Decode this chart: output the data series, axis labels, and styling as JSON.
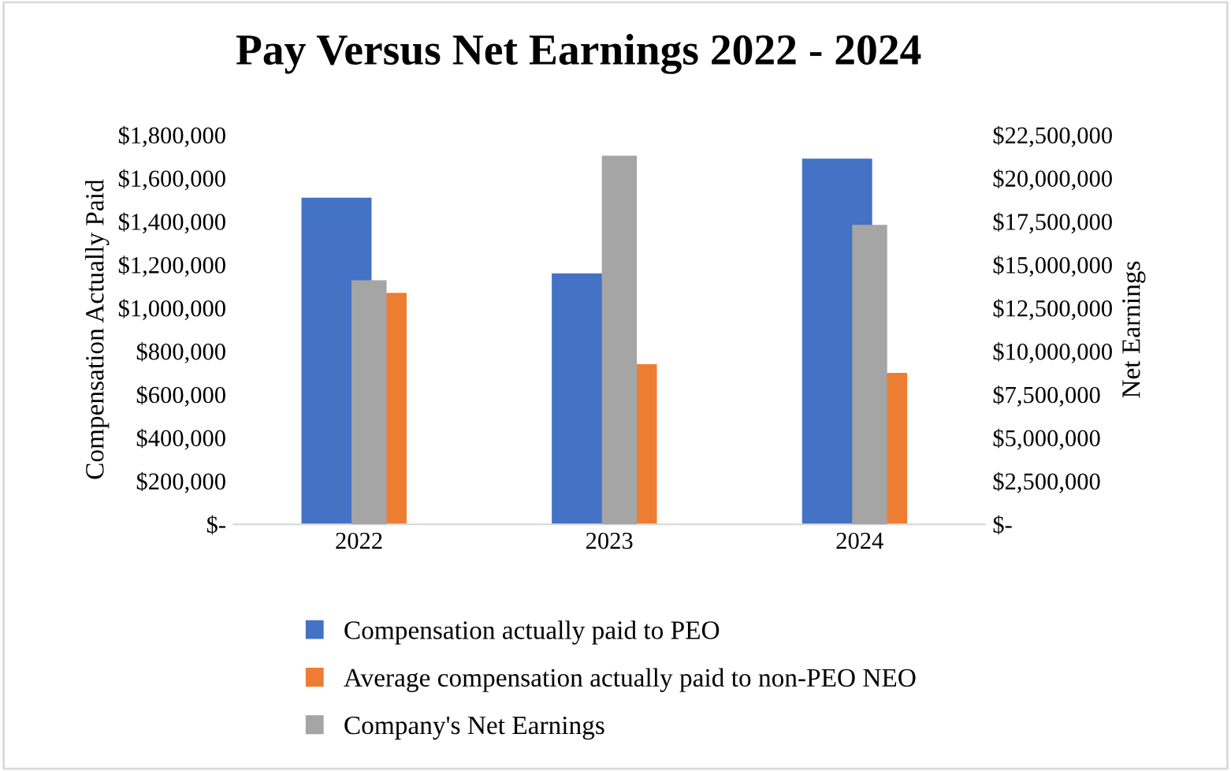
{
  "chart_data": {
    "type": "bar",
    "title": "Pay Versus Net Earnings 2022 - 2024",
    "ylabel": "Compensation Actually Paid",
    "y2label": "Net Earnings",
    "categories": [
      "2022",
      "2023",
      "2024"
    ],
    "series": [
      {
        "name": "Compensation actually paid to PEO",
        "color": "#4472c4",
        "values": [
          1510000,
          1160000,
          1690000
        ]
      },
      {
        "name": "Average compensation actually paid to non-PEO NEO",
        "color": "#ed7d31",
        "values": [
          1070000,
          740000,
          700000
        ]
      },
      {
        "name": "Company's Net Earnings",
        "color": "#a5a5a5",
        "values": [
          14100000,
          21300000,
          17300000
        ],
        "axis": "y2"
      }
    ],
    "ylim": [
      0,
      1800000
    ],
    "yticks": [
      {
        "value": 0,
        "label": "$-"
      },
      {
        "value": 200000,
        "label": "$200,000"
      },
      {
        "value": 400000,
        "label": "$400,000"
      },
      {
        "value": 600000,
        "label": "$600,000"
      },
      {
        "value": 800000,
        "label": "$800,000"
      },
      {
        "value": 1000000,
        "label": "$1,000,000"
      },
      {
        "value": 1200000,
        "label": "$1,200,000"
      },
      {
        "value": 1400000,
        "label": "$1,400,000"
      },
      {
        "value": 1600000,
        "label": "$1,600,000"
      },
      {
        "value": 1800000,
        "label": "$1,800,000"
      }
    ],
    "y2lim": [
      0,
      22500000
    ],
    "y2ticks": [
      {
        "value": 0,
        "label": "$-"
      },
      {
        "value": 2500000,
        "label": "$2,500,000"
      },
      {
        "value": 5000000,
        "label": "$5,000,000"
      },
      {
        "value": 7500000,
        "label": "$7,500,000"
      },
      {
        "value": 10000000,
        "label": "$10,000,000"
      },
      {
        "value": 12500000,
        "label": "$12,500,000"
      },
      {
        "value": 15000000,
        "label": "$15,000,000"
      },
      {
        "value": 17500000,
        "label": "$17,500,000"
      },
      {
        "value": 20000000,
        "label": "$20,000,000"
      },
      {
        "value": 22500000,
        "label": "$22,500,000"
      }
    ],
    "legend": "bottom"
  }
}
